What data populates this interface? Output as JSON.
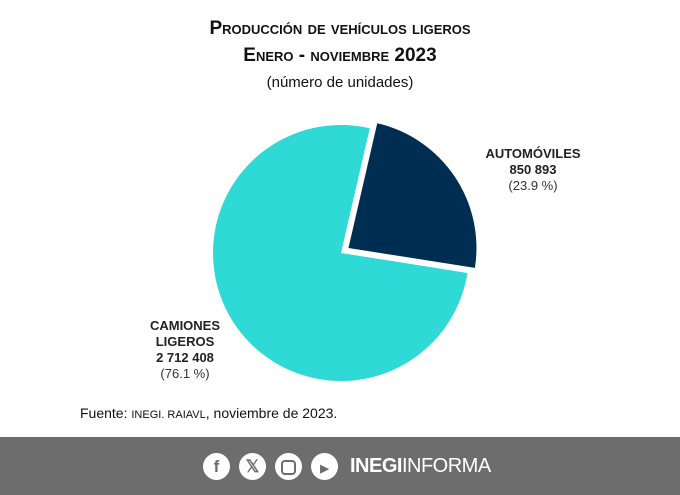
{
  "chart_data": {
    "type": "pie",
    "title": "Producción de vehículos ligeros",
    "subtitle": "Enero - noviembre 2023",
    "unit_note": "(número de unidades)",
    "slices": [
      {
        "label": "AUTOMÓVILES",
        "value": 850893,
        "value_text": "850 893",
        "percent_text": "(23.9 %)",
        "color": "#002d52",
        "exploded": true
      },
      {
        "label_lines": [
          "CAMIONES",
          "LIGEROS"
        ],
        "label": "CAMIONES LIGEROS",
        "value": 2712408,
        "value_text": "2 712  408",
        "percent_text": "(76.1 %)",
        "color": "#2fd9d5",
        "exploded": false
      }
    ]
  },
  "source": {
    "prefix": "Fuente: ",
    "org": "INEGI. RAIAVL",
    "suffix": ", noviembre de 2023."
  },
  "footer": {
    "brand_bold": "INEGI",
    "brand_light": "INFORMA",
    "icons": [
      "facebook-icon",
      "x-icon",
      "instagram-icon",
      "youtube-icon"
    ]
  }
}
